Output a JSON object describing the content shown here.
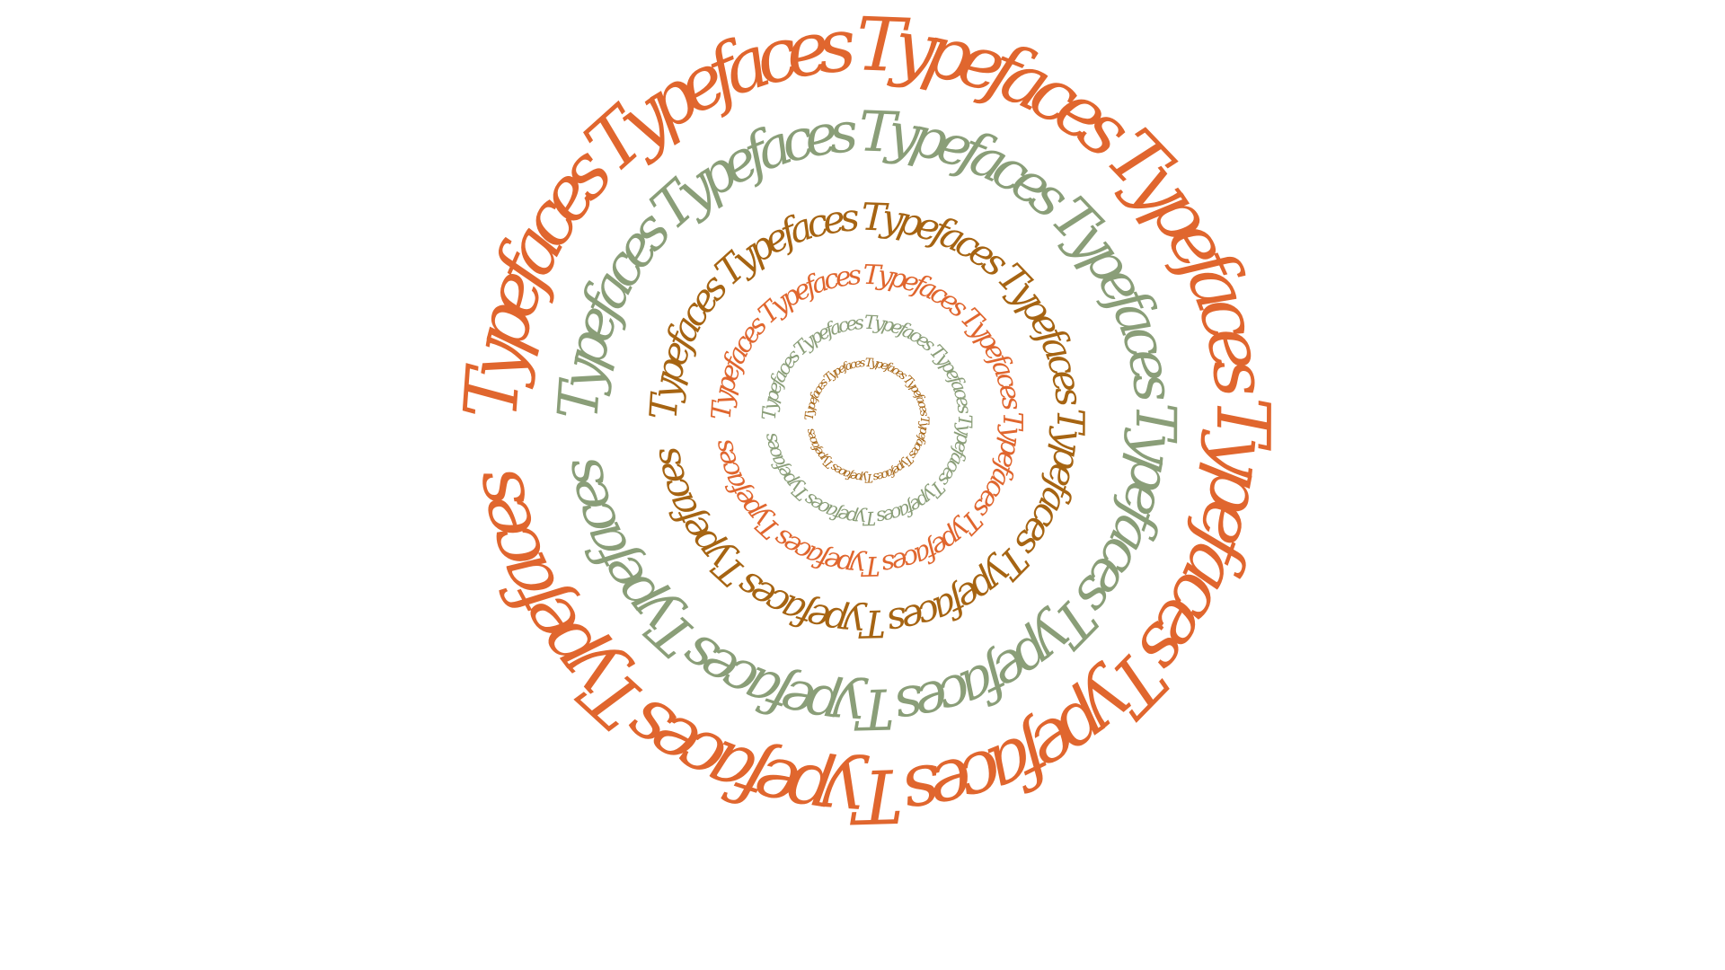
{
  "word": "Typefaces",
  "colors": {
    "orange": "#E0662E",
    "sage": "#8A9E78",
    "brown": "#A66412",
    "background": "#FFFFFF"
  },
  "rings": [
    {
      "name": "ring-1-outer",
      "color": "orange",
      "repeats": 8
    },
    {
      "name": "ring-2",
      "color": "sage",
      "repeats": 8
    },
    {
      "name": "ring-3",
      "color": "brown",
      "repeats": 8
    },
    {
      "name": "ring-4",
      "color": "orange",
      "repeats": 8
    },
    {
      "name": "ring-5",
      "color": "sage",
      "repeats": 8
    },
    {
      "name": "ring-6-inner",
      "color": "brown",
      "repeats": 8
    }
  ]
}
